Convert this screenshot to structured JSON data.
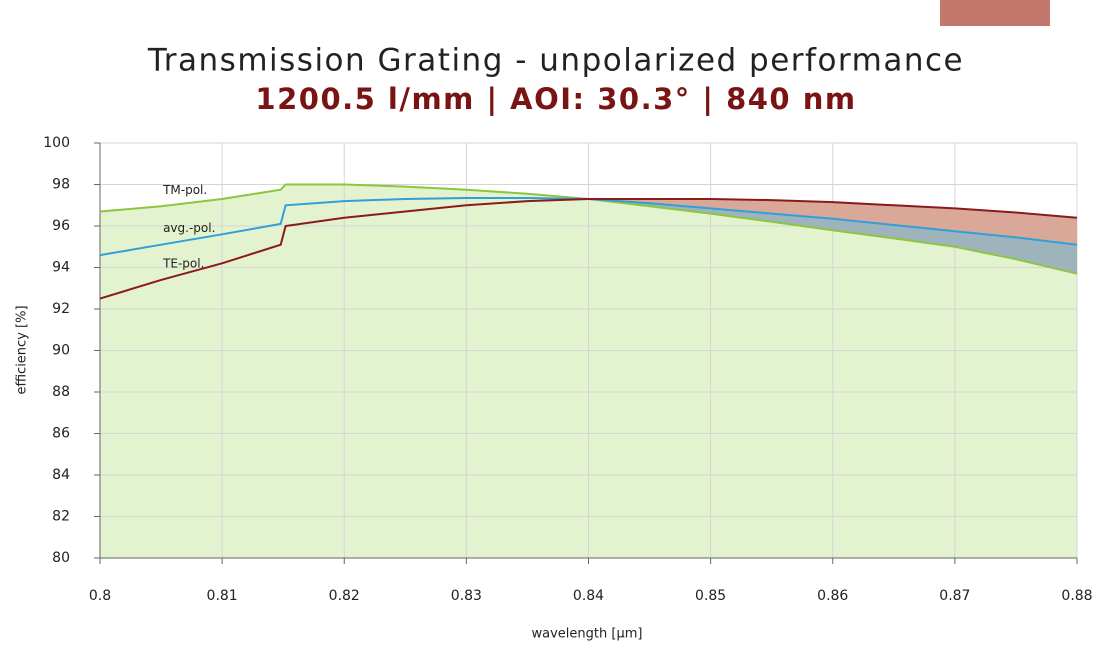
{
  "chart_data": {
    "type": "line",
    "title": "Transmission Grating - unpolarized performance",
    "subtitle": "1200.5 l/mm | AOI: 30.3° | 840 nm",
    "xlabel": "wavelength [µm]",
    "ylabel": "efficiency [%]",
    "x": [
      0.8,
      0.805,
      0.81,
      0.8148,
      0.8152,
      0.82,
      0.825,
      0.83,
      0.835,
      0.84,
      0.845,
      0.85,
      0.855,
      0.86,
      0.865,
      0.87,
      0.875,
      0.88
    ],
    "series": [
      {
        "name": "TM-pol.",
        "color": "#8cc63f",
        "values": [
          96.7,
          96.95,
          97.3,
          97.75,
          98.0,
          98.0,
          97.9,
          97.75,
          97.55,
          97.3,
          96.95,
          96.6,
          96.2,
          95.8,
          95.4,
          95.0,
          94.4,
          93.7
        ]
      },
      {
        "name": "avg.-pol.",
        "color": "#2fa0d8",
        "values": [
          94.6,
          95.1,
          95.6,
          96.1,
          97.0,
          97.2,
          97.3,
          97.35,
          97.35,
          97.3,
          97.1,
          96.85,
          96.6,
          96.35,
          96.05,
          95.75,
          95.45,
          95.1
        ]
      },
      {
        "name": "TE-pol.",
        "color": "#8b1a1a",
        "values": [
          92.5,
          93.4,
          94.2,
          95.1,
          96.0,
          96.4,
          96.7,
          97.0,
          97.2,
          97.3,
          97.3,
          97.3,
          97.25,
          97.15,
          97.0,
          96.85,
          96.65,
          96.4
        ]
      }
    ],
    "xlim": [
      0.8,
      0.88
    ],
    "xticks": [
      0.8,
      0.81,
      0.82,
      0.83,
      0.84,
      0.85,
      0.86,
      0.87,
      0.88
    ],
    "ylim": [
      80,
      100
    ],
    "yticks": [
      80,
      82,
      84,
      86,
      88,
      90,
      92,
      94,
      96,
      98,
      100
    ],
    "grid": true
  }
}
